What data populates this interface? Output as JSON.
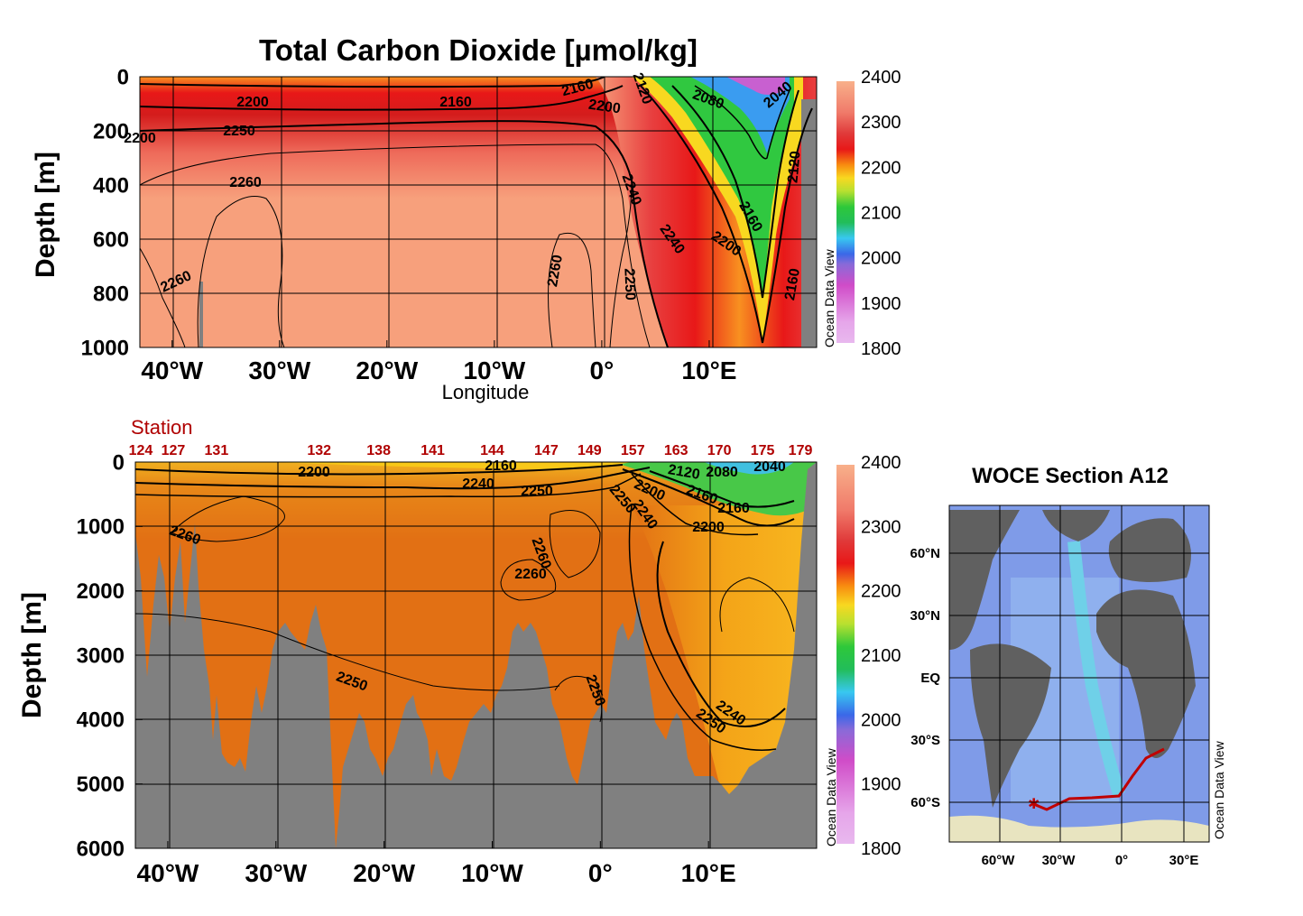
{
  "title": "Total Carbon Dioxide [µmol/kg]",
  "watermark": "Ocean Data View",
  "chart_data": [
    {
      "type": "heatmap",
      "panel": "upper section (0–1000 m)",
      "title": "Total Carbon Dioxide [µmol/kg]",
      "xlabel": "Longitude",
      "ylabel": "Depth [m]",
      "xlim": [
        -43,
        20
      ],
      "ylim": [
        1000,
        0
      ],
      "x_ticks": [
        "40°W",
        "30°W",
        "20°W",
        "10°W",
        "0°",
        "10°E"
      ],
      "x_tick_values": [
        -40,
        -30,
        -20,
        -10,
        0,
        10
      ],
      "y_ticks": [
        "0",
        "200",
        "400",
        "600",
        "800",
        "1000"
      ],
      "y_tick_values": [
        0,
        200,
        400,
        600,
        800,
        1000
      ],
      "contour_labels": [
        "2200",
        "2160",
        "2160",
        "2120",
        "2080",
        "2040",
        "2200",
        "2240",
        "2250",
        "2260",
        "2260",
        "2260",
        "2250",
        "2240",
        "2200",
        "2160",
        "2120",
        "2160",
        "2200"
      ],
      "colorbar": {
        "min": 1800,
        "max": 2400,
        "ticks": [
          "2400",
          "2300",
          "2200",
          "2100",
          "2000",
          "1900",
          "1800"
        ]
      },
      "grid": true
    },
    {
      "type": "heatmap",
      "panel": "lower section (0–6000 m)",
      "ylabel": "Depth [m]",
      "xlim": [
        -43,
        20
      ],
      "ylim": [
        6000,
        0
      ],
      "x_ticks": [
        "40°W",
        "30°W",
        "20°W",
        "10°W",
        "0°",
        "10°E"
      ],
      "x_tick_values": [
        -40,
        -30,
        -20,
        -10,
        0,
        10
      ],
      "y_ticks": [
        "0",
        "1000",
        "2000",
        "3000",
        "4000",
        "5000",
        "6000"
      ],
      "y_tick_values": [
        0,
        1000,
        2000,
        3000,
        4000,
        5000,
        6000
      ],
      "station_label": "Station",
      "stations": [
        "124",
        "127",
        "131",
        "132",
        "138",
        "141",
        "144",
        "147",
        "149",
        "157",
        "163",
        "170",
        "175",
        "179"
      ],
      "station_lon": [
        -42.5,
        -39.5,
        -35.5,
        -26,
        -20.5,
        -15.5,
        -10,
        -5,
        -1,
        3,
        7,
        11,
        15,
        18.5
      ],
      "contour_labels": [
        "2200",
        "2160",
        "2240",
        "2250",
        "2120",
        "2080",
        "2040",
        "2200",
        "2160",
        "2160",
        "2250",
        "2240",
        "2200",
        "2260",
        "2260",
        "2260",
        "2250",
        "2250",
        "2240",
        "2250"
      ],
      "colorbar": {
        "min": 1800,
        "max": 2400,
        "ticks": [
          "2400",
          "2300",
          "2200",
          "2100",
          "2000",
          "1900",
          "1800"
        ]
      },
      "grid": true
    },
    {
      "type": "map",
      "title": "WOCE Section A12",
      "lat_ticks": [
        "60°N",
        "30°N",
        "EQ",
        "30°S",
        "60°S"
      ],
      "lon_ticks": [
        "60°W",
        "30°W",
        "0°",
        "30°E"
      ],
      "track_color": "#c00000"
    }
  ],
  "colors": {
    "land": "#808080",
    "station_text": "#b00000",
    "track": "#c00000"
  }
}
